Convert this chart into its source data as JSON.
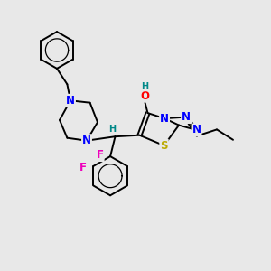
{
  "background_color": "#e8e8e8",
  "figsize": [
    3.0,
    3.0
  ],
  "dpi": 100,
  "atom_colors": {
    "N": "#0000ff",
    "O": "#ff0000",
    "S": "#bbaa00",
    "F": "#ee00bb",
    "H": "#008888",
    "C": "#000000"
  },
  "bond_color": "#000000",
  "bond_width": 1.4,
  "font_size_atom": 8.5,
  "font_size_H": 7.0
}
